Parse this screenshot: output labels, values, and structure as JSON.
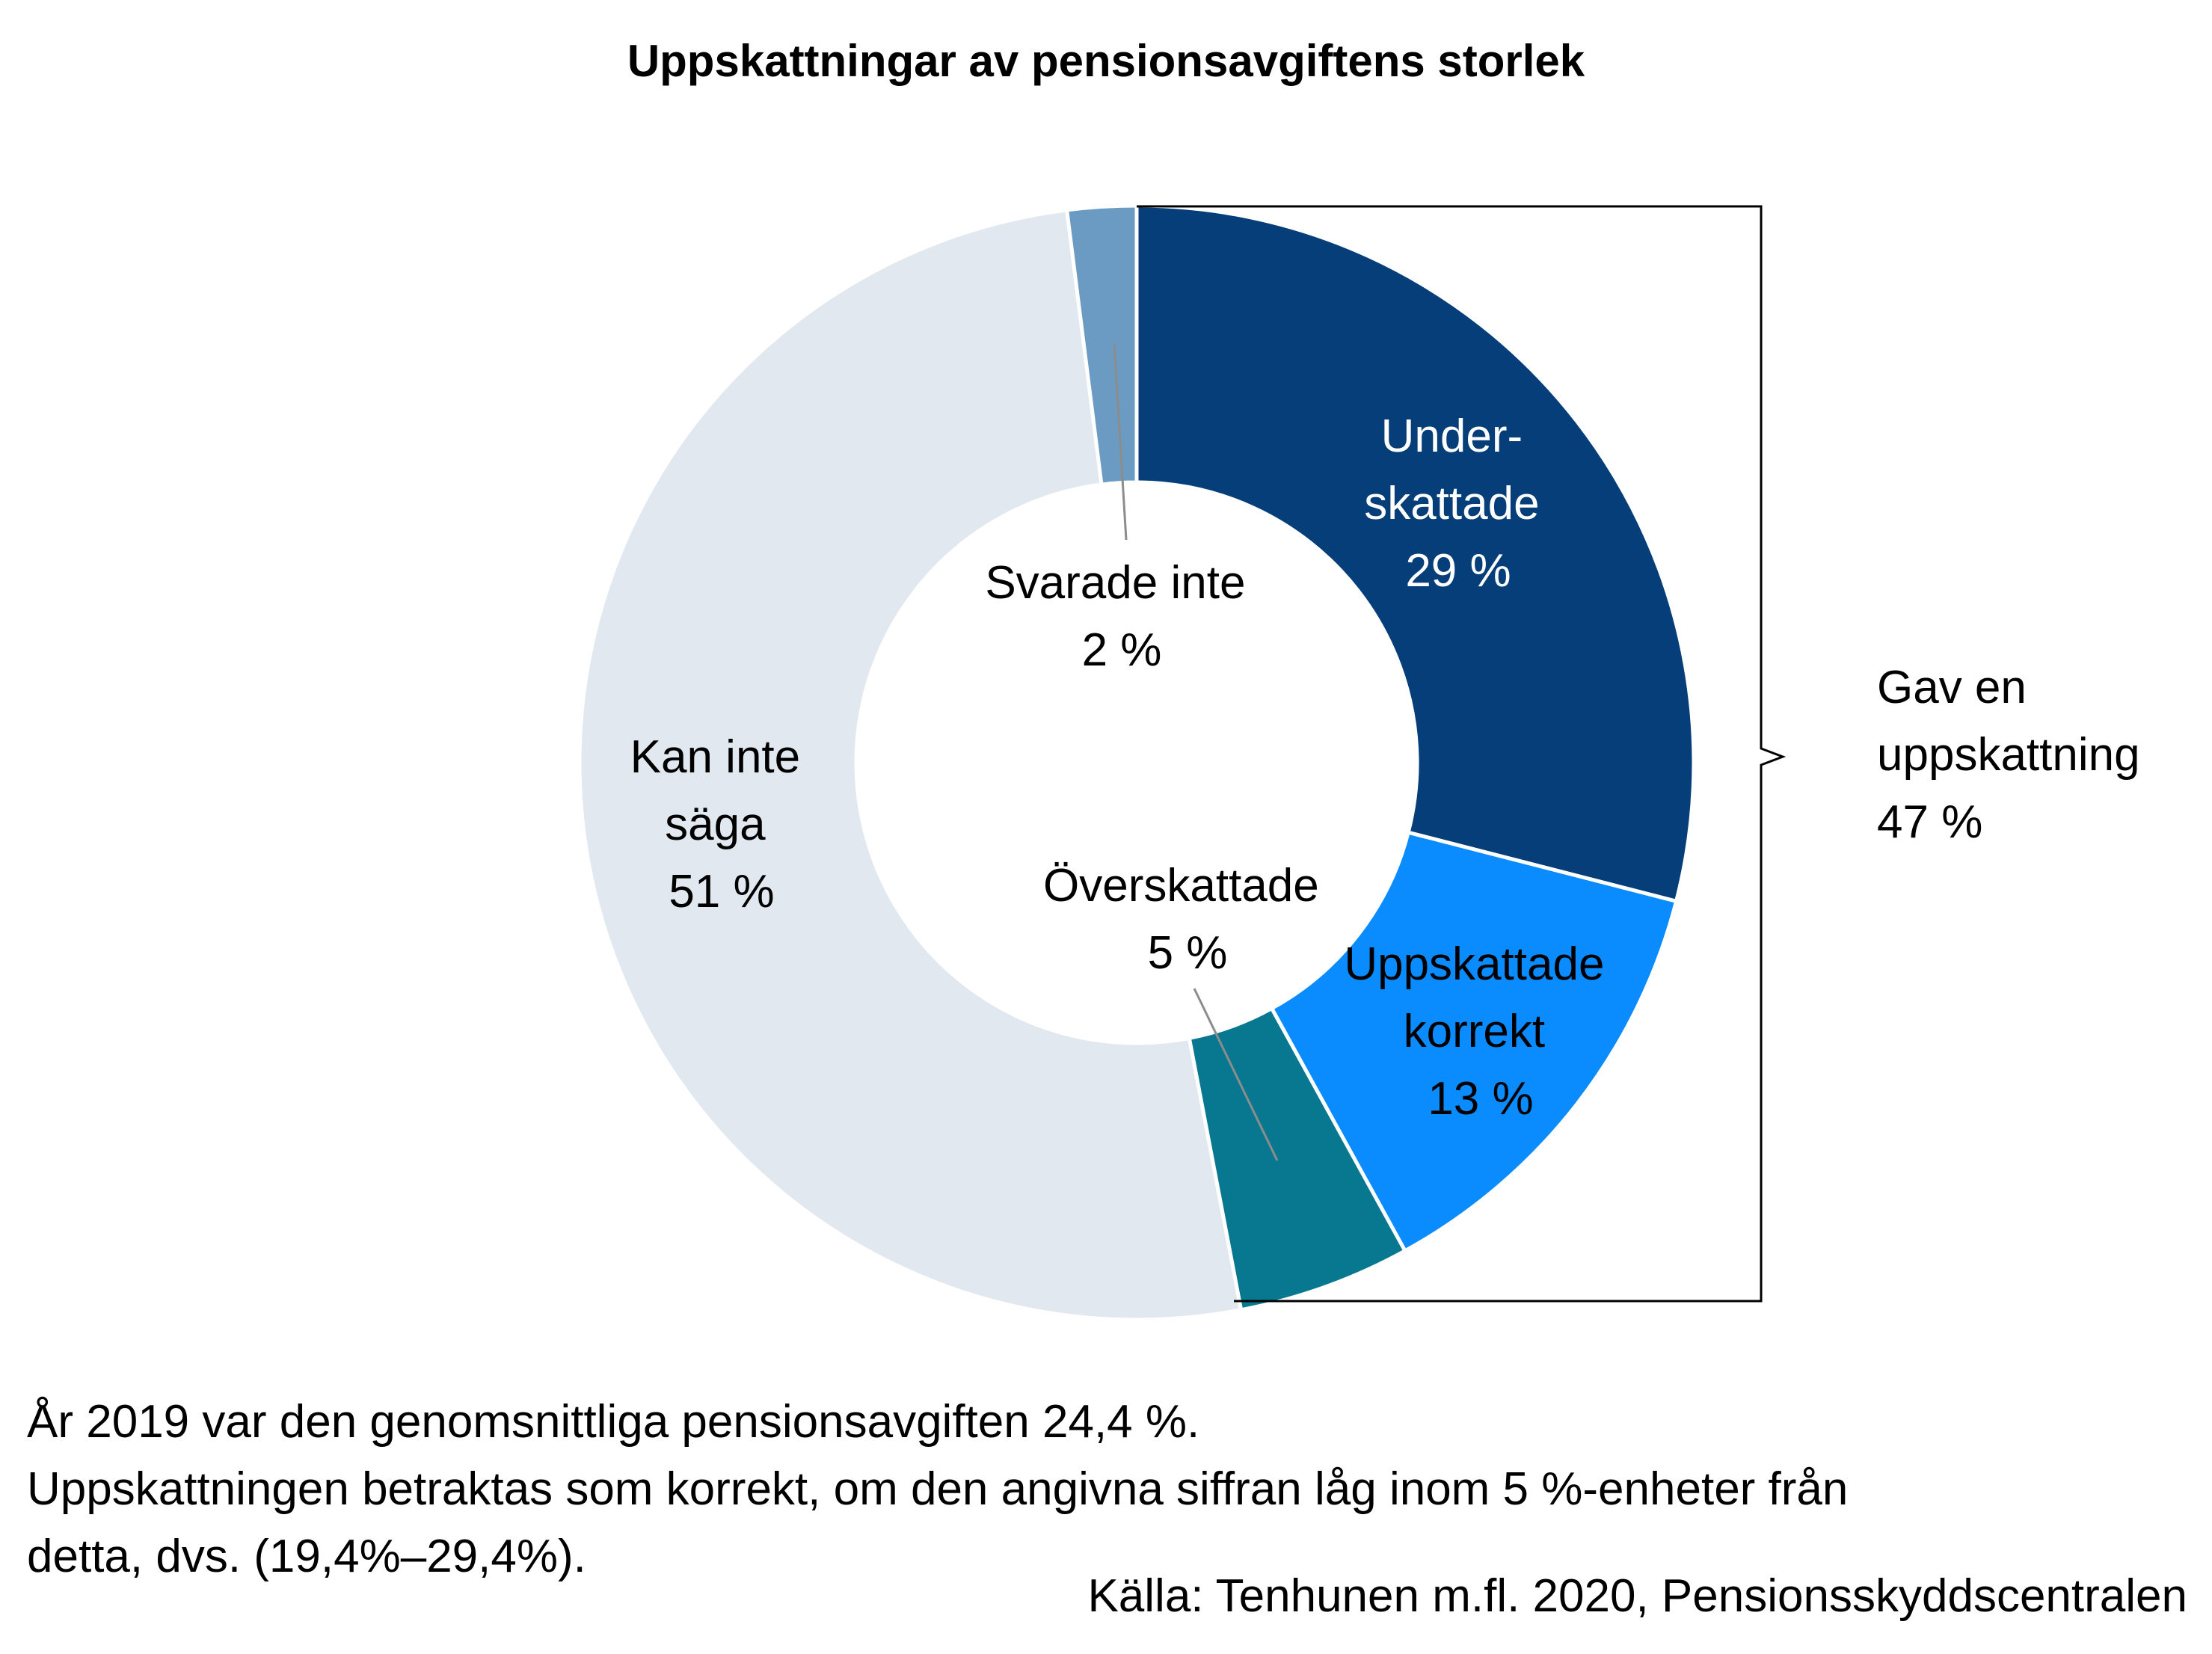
{
  "chart_data": {
    "type": "pie",
    "title": "Uppskattningar av pensionsavgiftens storlek",
    "slices": [
      {
        "name": "Underskattade",
        "label_lines": [
          "Under-",
          "skattade",
          "29 %"
        ],
        "value": 29,
        "color": "#053e78"
      },
      {
        "name": "Uppskattade korrekt",
        "label_lines": [
          "Uppskattade",
          "korrekt",
          "13 %"
        ],
        "value": 13,
        "color": "#0a8cff"
      },
      {
        "name": "Överskattade",
        "label_lines": [
          "Överskattade",
          "5 %"
        ],
        "value": 5,
        "color": "#087891"
      },
      {
        "name": "Kan inte säga",
        "label_lines": [
          "Kan inte",
          "säga",
          "51 %"
        ],
        "value": 51,
        "color": "#e2e8f0"
      },
      {
        "name": "Svarade inte",
        "label_lines": [
          "Svarade inte",
          "2 %"
        ],
        "value": 2,
        "color": "#6b9bc3"
      }
    ],
    "bracket_label_lines": [
      "Gav en",
      "uppskattning",
      "47 %"
    ],
    "bracket_value": 47
  },
  "notes": {
    "line1": "År 2019 var den genomsnittliga pensionsavgiften 24,4 %.",
    "line2": "Uppskattningen betraktas som korrekt, om den angivna siffran låg inom 5 %-enheter från",
    "line3": "detta, dvs. (19,4%–29,4%).",
    "source": "Källa: Tenhunen m.fl. 2020, Pensionsskyddscentralen"
  }
}
